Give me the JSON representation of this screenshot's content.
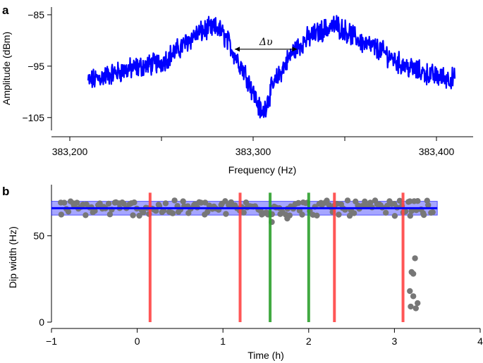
{
  "figure": {
    "panel_a_label": "a",
    "panel_b_label": "b"
  },
  "chart_data": [
    {
      "type": "line",
      "panel": "a",
      "xlabel": "Frequency (Hz)",
      "ylabel": "Amplitude (dBm)",
      "xlim": [
        383190,
        383420
      ],
      "ylim": [
        -107.5,
        -83.5
      ],
      "xticks": [
        383200,
        383250,
        383300,
        383350,
        383400
      ],
      "xtick_labels": [
        "383,200",
        "",
        "383,300",
        "",
        "383,400"
      ],
      "yticks": [
        -85,
        -95,
        -105
      ],
      "ytick_labels": [
        "−85",
        "−95",
        "−105"
      ],
      "annotation": {
        "text": "Δυ",
        "from_x": 383290,
        "to_x": 383324,
        "y": -91.7
      },
      "series": [
        {
          "color": "#0000ff",
          "x_start": 383210,
          "x_end": 383410,
          "keypoints": [
            [
              383210,
              -98.0
            ],
            [
              383220,
              -96.8
            ],
            [
              383230,
              -95.8
            ],
            [
              383240,
              -95.0
            ],
            [
              383250,
              -94.2
            ],
            [
              383260,
              -91.5
            ],
            [
              383268,
              -89.0
            ],
            [
              383275,
              -87.8
            ],
            [
              383281,
              -87.6
            ],
            [
              383286,
              -90.0
            ],
            [
              383290,
              -92.8
            ],
            [
              383296,
              -96.5
            ],
            [
              383301,
              -101.0
            ],
            [
              383305,
              -104.5
            ],
            [
              383310,
              -99.5
            ],
            [
              383316,
              -95.5
            ],
            [
              383322,
              -92.0
            ],
            [
              383330,
              -89.5
            ],
            [
              383338,
              -88.0
            ],
            [
              383345,
              -87.0
            ],
            [
              383352,
              -88.5
            ],
            [
              383360,
              -90.5
            ],
            [
              383370,
              -92.0
            ],
            [
              383380,
              -94.5
            ],
            [
              383390,
              -96.0
            ],
            [
              383400,
              -97.0
            ],
            [
              383410,
              -97.5
            ]
          ]
        }
      ]
    },
    {
      "type": "scatter",
      "panel": "b",
      "xlabel": "Time (h)",
      "ylabel": "Dip width (Hz)",
      "xlim": [
        -1,
        4
      ],
      "ylim": [
        0,
        78
      ],
      "xticks": [
        -1,
        0,
        1,
        2,
        3,
        4
      ],
      "xtick_labels": [
        "−1",
        "0",
        "1",
        "2",
        "3",
        "4"
      ],
      "yticks": [
        0,
        50
      ],
      "ytick_labels": [
        "0",
        "50"
      ],
      "mean_line": {
        "y": 66,
        "band": [
          62,
          70
        ],
        "x_range": [
          -1,
          3.5
        ],
        "color": "#0000ff"
      },
      "vertical_lines": [
        {
          "x": 0.15,
          "color": "#ff4444"
        },
        {
          "x": 1.2,
          "color": "#ff4444"
        },
        {
          "x": 1.55,
          "color": "#2ca02c"
        },
        {
          "x": 2.0,
          "color": "#2ca02c"
        },
        {
          "x": 2.3,
          "color": "#ff4444"
        },
        {
          "x": 3.1,
          "color": "#ff4444"
        }
      ],
      "points_color": "#777777",
      "baseline_points": {
        "x_start": -0.9,
        "x_end": 3.45,
        "count": 180,
        "mean": 66,
        "spread": 4.5
      },
      "extra_points": [
        {
          "x": 1.57,
          "y": 58
        },
        {
          "x": 1.75,
          "y": 60
        },
        {
          "x": 3.18,
          "y": 70
        },
        {
          "x": 3.24,
          "y": 37
        },
        {
          "x": 3.2,
          "y": 29
        },
        {
          "x": 3.22,
          "y": 28
        },
        {
          "x": 3.18,
          "y": 18
        },
        {
          "x": 3.22,
          "y": 15
        },
        {
          "x": 3.19,
          "y": 9
        },
        {
          "x": 3.25,
          "y": 8
        },
        {
          "x": 3.27,
          "y": 11
        }
      ]
    }
  ]
}
